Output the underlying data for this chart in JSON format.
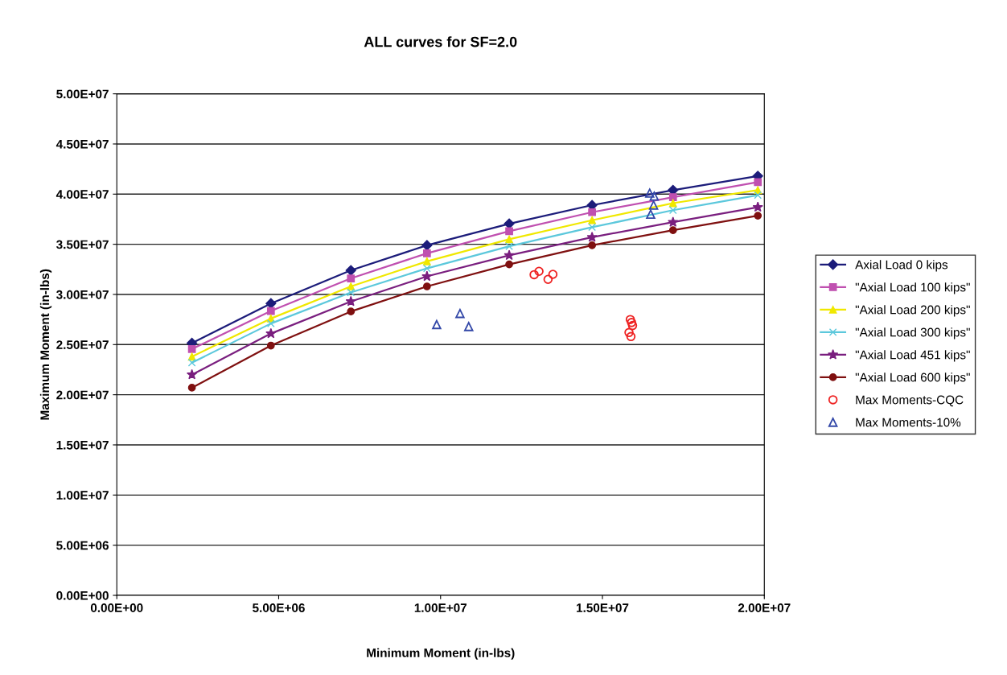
{
  "chart_data": {
    "type": "line",
    "title": "ALL curves for SF=2.0",
    "xlabel": "Minimum Moment (in-lbs)",
    "ylabel": "Maximum Moment (in-lbs)",
    "xlim": [
      0,
      20000000
    ],
    "ylim": [
      0,
      50000000
    ],
    "xticks": [
      {
        "value": 0,
        "label": "0.00E+00"
      },
      {
        "value": 5000000,
        "label": "5.00E+06"
      },
      {
        "value": 10000000,
        "label": "1.00E+07"
      },
      {
        "value": 15000000,
        "label": "1.50E+07"
      },
      {
        "value": 20000000,
        "label": "2.00E+07"
      }
    ],
    "yticks": [
      {
        "value": 0,
        "label": "0.00E+00"
      },
      {
        "value": 5000000,
        "label": "5.00E+06"
      },
      {
        "value": 10000000,
        "label": "1.00E+07"
      },
      {
        "value": 15000000,
        "label": "1.50E+07"
      },
      {
        "value": 20000000,
        "label": "2.00E+07"
      },
      {
        "value": 25000000,
        "label": "2.50E+07"
      },
      {
        "value": 30000000,
        "label": "3.00E+07"
      },
      {
        "value": 35000000,
        "label": "3.50E+07"
      },
      {
        "value": 40000000,
        "label": "4.00E+07"
      },
      {
        "value": 45000000,
        "label": "4.50E+07"
      },
      {
        "value": 50000000,
        "label": "5.00E+07"
      }
    ],
    "grid": "y",
    "legend": "right",
    "x": [
      2320000,
      4760000,
      7230000,
      9580000,
      12120000,
      14680000,
      17180000,
      19800000
    ],
    "series": [
      {
        "name": "Axial Load 0 kips",
        "color": "#1c1c7a",
        "marker": "diamond",
        "values": [
          25150000,
          29100000,
          32400000,
          34900000,
          37050000,
          38900000,
          40400000,
          41800000
        ]
      },
      {
        "name": "\"Axial Load 100 kips\"",
        "color": "#c050b0",
        "marker": "square",
        "values": [
          24560000,
          28350000,
          31600000,
          34100000,
          36300000,
          38200000,
          39700000,
          41200000
        ]
      },
      {
        "name": "\"Axial Load 200 kips\"",
        "color": "#f0e800",
        "marker": "triangle",
        "values": [
          23800000,
          27600000,
          30800000,
          33300000,
          35500000,
          37400000,
          39100000,
          40400000
        ]
      },
      {
        "name": "\"Axial Load 300 kips\"",
        "color": "#5cc8dc",
        "marker": "cross",
        "values": [
          23200000,
          27100000,
          30200000,
          32600000,
          34800000,
          36700000,
          38400000,
          39900000
        ]
      },
      {
        "name": "\"Axial Load 451 kips\"",
        "color": "#7a1f7f",
        "marker": "star",
        "values": [
          22000000,
          26100000,
          29300000,
          31800000,
          33900000,
          35700000,
          37200000,
          38700000
        ]
      },
      {
        "name": "\"Axial Load 600 kips\"",
        "color": "#7f1010",
        "marker": "circle",
        "values": [
          20700000,
          24900000,
          28300000,
          30800000,
          33000000,
          34900000,
          36400000,
          37850000
        ]
      },
      {
        "name": "Max Moments-CQC",
        "type": "scatter",
        "color": "#ee2222",
        "marker": "circle",
        "x": [
          12890000,
          13040000,
          13320000,
          13470000,
          15860000,
          15900000,
          15930000,
          15820000,
          15880000
        ],
        "values": [
          31970000,
          32300000,
          31500000,
          32000000,
          27500000,
          27200000,
          26900000,
          26200000,
          25800000
        ]
      },
      {
        "name": "Max Moments-10%",
        "type": "scatter",
        "color": "#3348a8",
        "marker": "triangle",
        "x": [
          9880000,
          10600000,
          10870000,
          16460000,
          16600000,
          16580000,
          16490000
        ],
        "values": [
          27000000,
          28100000,
          26800000,
          40100000,
          39800000,
          38900000,
          38000000
        ]
      }
    ]
  }
}
